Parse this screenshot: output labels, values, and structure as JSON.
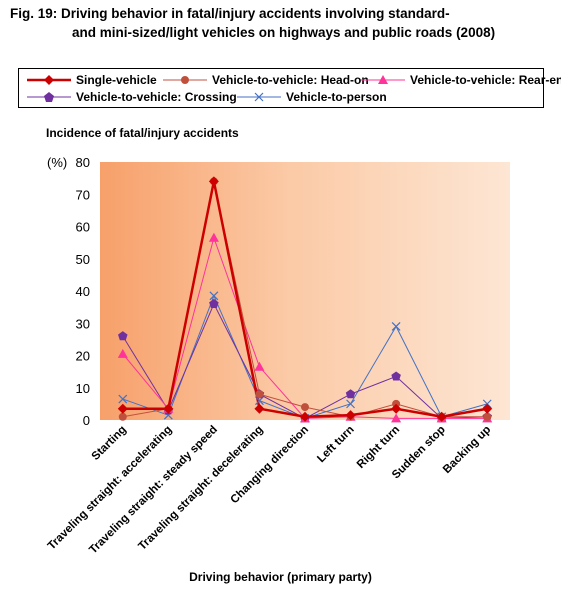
{
  "title_line1": "Fig. 19: Driving behavior in fatal/injury accidents involving standard-",
  "title_line2": "and mini-sized/light vehicles on highways and public roads (2008)",
  "chart_data": {
    "type": "line",
    "ylabel": "Incidence of fatal/injury accidents",
    "yunit": "(%)",
    "xlabel": "Driving behavior (primary party)",
    "ylim": [
      0,
      80
    ],
    "yticks": [
      0,
      10,
      20,
      30,
      40,
      50,
      60,
      70,
      80
    ],
    "grid": false,
    "legend_position": "top",
    "categories": [
      "Starting",
      "Traveling straight: accelerating",
      "Traveling straight: steady speed",
      "Traveling straight: decelerating",
      "Changing direction",
      "Left turn",
      "Right turn",
      "Sudden stop",
      "Backing up"
    ],
    "series": [
      {
        "name": "Single-vehicle",
        "color": "#cc0000",
        "marker": "diamond",
        "values": [
          3.5,
          3.5,
          74,
          3.5,
          1,
          1.5,
          3.5,
          1,
          3.5
        ]
      },
      {
        "name": "Vehicle-to-vehicle: Head-on",
        "color": "#c0503c",
        "marker": "circle",
        "values": [
          1,
          3.5,
          74,
          8,
          4,
          1,
          5,
          1,
          1
        ]
      },
      {
        "name": "Vehicle-to-vehicle: Rear-end",
        "color": "#ff3399",
        "marker": "triangle",
        "values": [
          20.5,
          3.5,
          56.5,
          16.5,
          0.5,
          1,
          0.5,
          0.5,
          0.5
        ]
      },
      {
        "name": "Vehicle-to-vehicle: Crossing",
        "color": "#7030a0",
        "marker": "pentagon",
        "values": [
          26,
          3,
          36,
          8,
          0.5,
          8,
          13.5,
          0.5,
          1
        ]
      },
      {
        "name": "Vehicle-to-person",
        "color": "#4472c4",
        "marker": "x",
        "values": [
          6.5,
          1.5,
          38.5,
          6,
          0.5,
          5,
          29,
          1,
          5
        ]
      }
    ]
  }
}
